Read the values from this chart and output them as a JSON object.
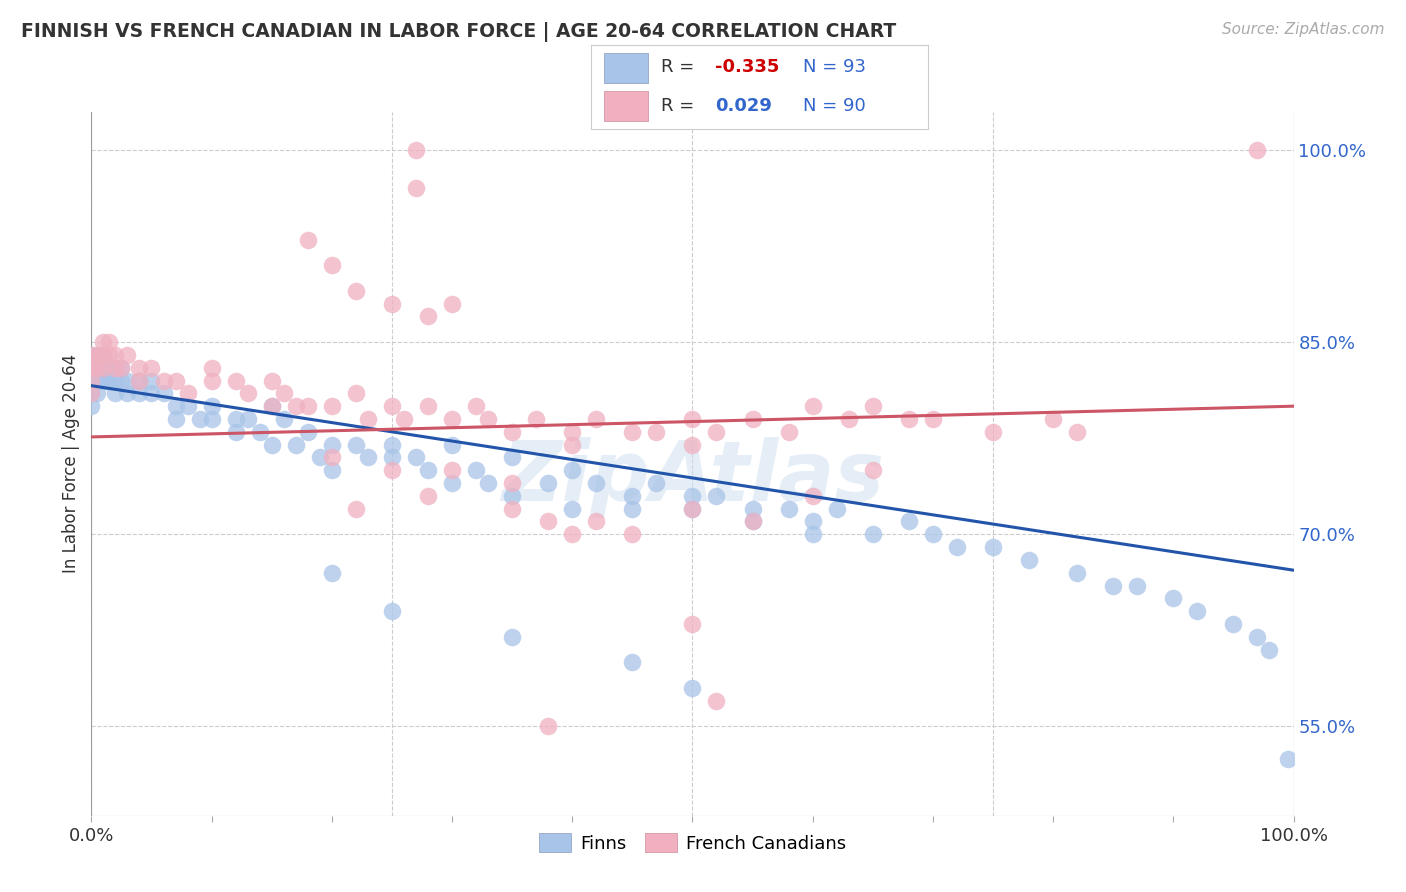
{
  "title": "FINNISH VS FRENCH CANADIAN IN LABOR FORCE | AGE 20-64 CORRELATION CHART",
  "source": "Source: ZipAtlas.com",
  "ylabel": "In Labor Force | Age 20-64",
  "xlim": [
    0.0,
    1.0
  ],
  "ylim": [
    0.48,
    1.03
  ],
  "ytick_labels_right": [
    "100.0%",
    "85.0%",
    "70.0%",
    "55.0%"
  ],
  "ytick_values_right": [
    1.0,
    0.85,
    0.7,
    0.55
  ],
  "legend_finn_r": "-0.335",
  "legend_finn_n": "93",
  "legend_french_r": "0.029",
  "legend_french_n": "90",
  "finn_color": "#a8c4e8",
  "french_color": "#f0b0c0",
  "finn_line_color": "#2255aa",
  "french_line_color": "#cc5566",
  "background_color": "#ffffff",
  "grid_color": "#cccccc",
  "finn_line_start_y": 0.816,
  "finn_line_end_y": 0.672,
  "french_line_start_y": 0.776,
  "french_line_end_y": 0.8
}
